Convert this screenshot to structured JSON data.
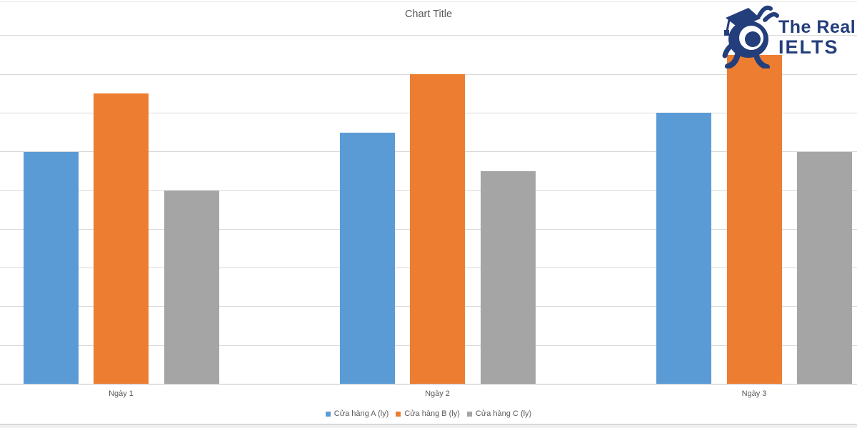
{
  "page": {
    "background": "#ffffff"
  },
  "chart_data": {
    "type": "bar",
    "title": "Chart Title",
    "title_color": "#595959",
    "categories": [
      "Ngày 1",
      "Ngày 2",
      "Ngày 3"
    ],
    "series": [
      {
        "name": "Cửa hàng A (ly)",
        "color": "#5B9BD5",
        "values": [
          60,
          65,
          70
        ]
      },
      {
        "name": "Cửa hàng B (ly)",
        "color": "#ED7D31",
        "values": [
          75,
          80,
          85
        ]
      },
      {
        "name": "Cửa hàng C (ly)",
        "color": "#A5A5A5",
        "values": [
          50,
          55,
          60
        ]
      }
    ],
    "xlabel": "",
    "ylabel": "",
    "ylim": [
      0,
      90
    ],
    "grid_step": 10,
    "grid": true,
    "y_tick_labels_visible": false,
    "legend_position": "bottom",
    "gridline_color": "#d9d9d9",
    "axis_line_color": "#bfbfbf",
    "label_color": "#595959"
  },
  "logo": {
    "line1": "The Real",
    "line2": "IELTS",
    "color": "#243E7B",
    "mascot": "snail-graduate-mascot"
  }
}
